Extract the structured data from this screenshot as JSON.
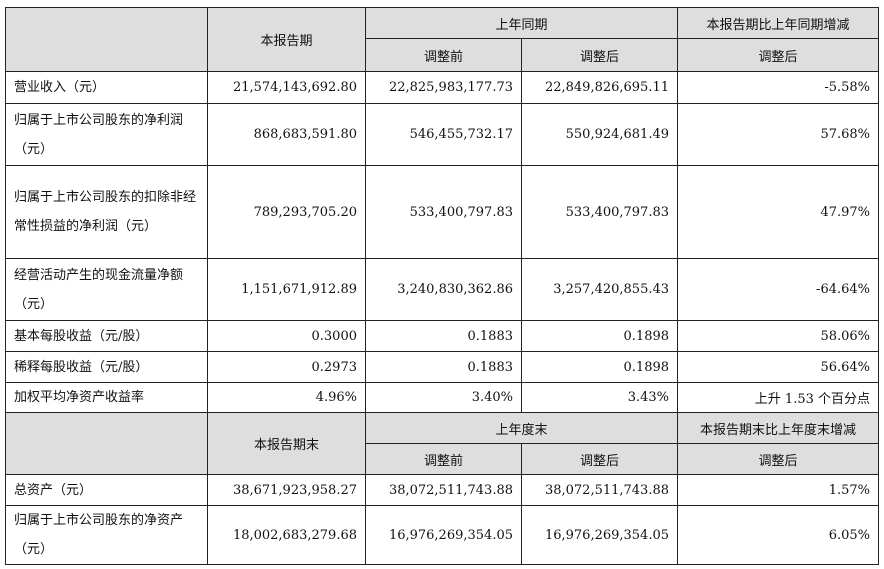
{
  "header1": {
    "col_current": "本报告期",
    "col_prior_group": "上年同期",
    "col_change": "本报告期比上年同期增减",
    "sub_before": "调整前",
    "sub_after": "调整后",
    "sub_change_after": "调整后"
  },
  "rows1": [
    {
      "label": "营业收入（元）",
      "current": "21,574,143,692.80",
      "before": "22,825,983,177.73",
      "after": "22,849,826,695.11",
      "change": "-5.58%"
    },
    {
      "label": "归属于上市公司股东的净利润（元）",
      "current": "868,683,591.80",
      "before": "546,455,732.17",
      "after": "550,924,681.49",
      "change": "57.68%"
    },
    {
      "label": "归属于上市公司股东的扣除非经常性损益的净利润（元）",
      "current": "789,293,705.20",
      "before": "533,400,797.83",
      "after": "533,400,797.83",
      "change": "47.97%"
    },
    {
      "label": "经营活动产生的现金流量净额（元）",
      "current": "1,151,671,912.89",
      "before": "3,240,830,362.86",
      "after": "3,257,420,855.43",
      "change": "-64.64%"
    },
    {
      "label": "基本每股收益（元/股）",
      "current": "0.3000",
      "before": "0.1883",
      "after": "0.1898",
      "change": "58.06%"
    },
    {
      "label": "稀释每股收益（元/股）",
      "current": "0.2973",
      "before": "0.1883",
      "after": "0.1898",
      "change": "56.64%"
    },
    {
      "label": "加权平均净资产收益率",
      "current": "4.96%",
      "before": "3.40%",
      "after": "3.43%",
      "change": "上升 1.53 个百分点"
    }
  ],
  "header2": {
    "col_current": "本报告期末",
    "col_prior_group": "上年度末",
    "col_change": "本报告期末比上年度末增减",
    "sub_before": "调整前",
    "sub_after": "调整后",
    "sub_change_after": "调整后"
  },
  "rows2": [
    {
      "label": "总资产（元）",
      "current": "38,671,923,958.27",
      "before": "38,072,511,743.88",
      "after": "38,072,511,743.88",
      "change": "1.57%"
    },
    {
      "label": "归属于上市公司股东的净资产（元）",
      "current": "18,002,683,279.68",
      "before": "16,976,269,354.05",
      "after": "16,976,269,354.05",
      "change": "6.05%"
    }
  ]
}
